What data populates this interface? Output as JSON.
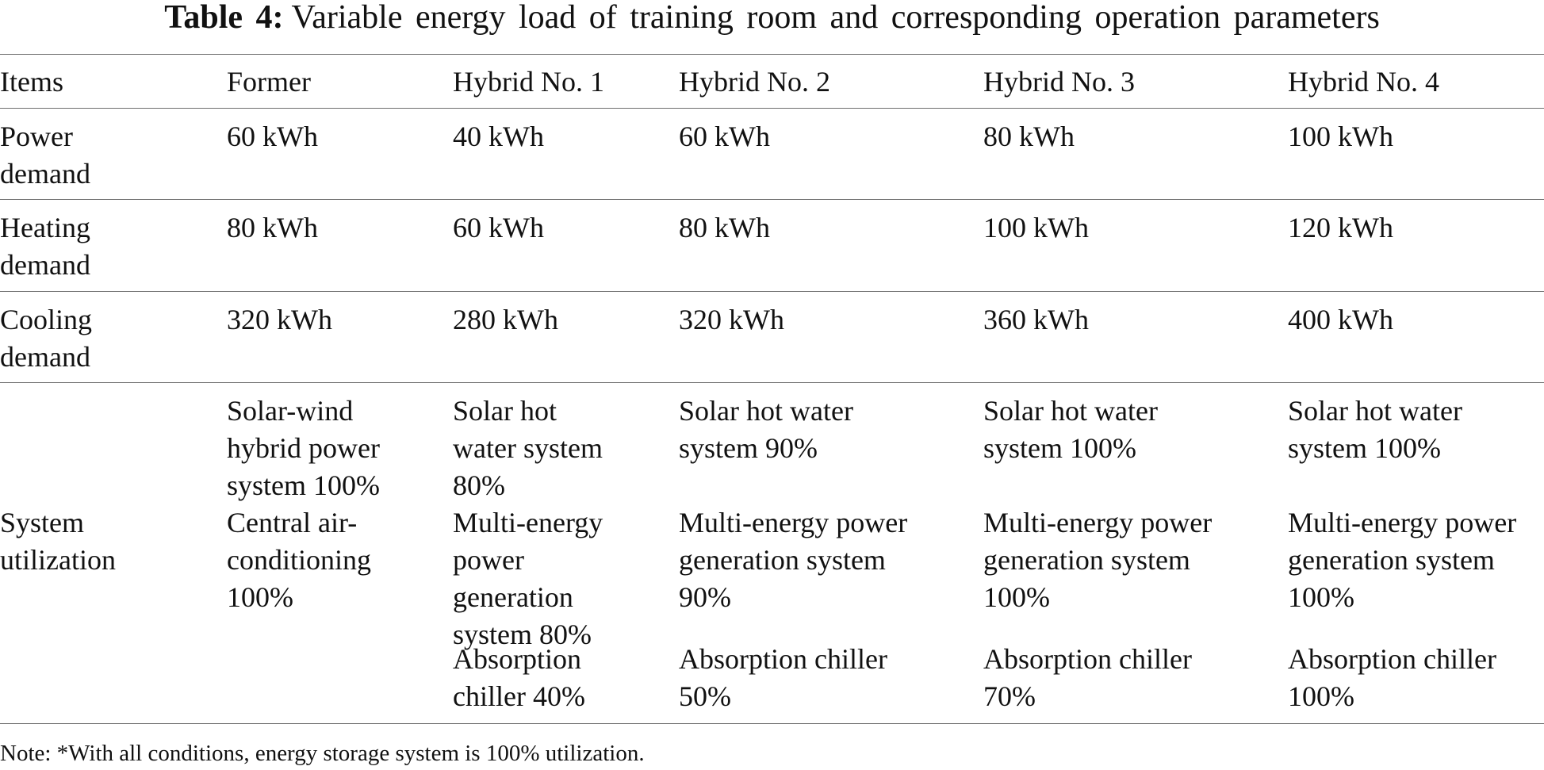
{
  "caption": {
    "label": "Table 4:",
    "text": "Variable energy load of training room and corresponding operation parameters"
  },
  "table": {
    "headers": [
      "Items",
      "Former",
      "Hybrid No. 1",
      "Hybrid No. 2",
      "Hybrid No. 3",
      "Hybrid No. 4"
    ],
    "power": {
      "label_l1": "Power",
      "label_l2": "demand",
      "values": [
        "60 kWh",
        "40 kWh",
        "60 kWh",
        "80 kWh",
        "100 kWh"
      ]
    },
    "heating": {
      "label_l1": "Heating",
      "label_l2": "demand",
      "values": [
        "80 kWh",
        "60 kWh",
        "80 kWh",
        "100 kWh",
        "120 kWh"
      ]
    },
    "cooling": {
      "label_l1": "Cooling",
      "label_l2": "demand",
      "values": [
        "320 kWh",
        "280 kWh",
        "320 kWh",
        "360 kWh",
        "400 kWh"
      ]
    },
    "utilization": {
      "label_l1": "System",
      "label_l2": "utilization",
      "former": {
        "a": [
          "Solar-wind",
          "hybrid power",
          "system 100%"
        ],
        "b": [
          "Central air-",
          "conditioning",
          "100%"
        ]
      },
      "h1": {
        "a": [
          "Solar hot",
          "water system",
          "80%"
        ],
        "b": [
          "Multi-energy",
          "power",
          "generation",
          "system 80%"
        ],
        "c": [
          "Absorption",
          "chiller 40%"
        ]
      },
      "h2": {
        "a": [
          "Solar hot water",
          "system 90%"
        ],
        "b": [
          "Multi-energy power",
          "generation system",
          "90%"
        ],
        "c": [
          "Absorption chiller",
          "50%"
        ]
      },
      "h3": {
        "a": [
          "Solar hot water",
          "system 100%"
        ],
        "b": [
          "Multi-energy power",
          "generation system",
          "100%"
        ],
        "c": [
          "Absorption chiller",
          "70%"
        ]
      },
      "h4": {
        "a": [
          "Solar hot water",
          "system 100%"
        ],
        "b": [
          "Multi-energy power",
          "generation system",
          "100%"
        ],
        "c": [
          "Absorption chiller",
          "100%"
        ]
      }
    }
  },
  "note": "Note: *With all conditions, energy storage system is 100% utilization."
}
